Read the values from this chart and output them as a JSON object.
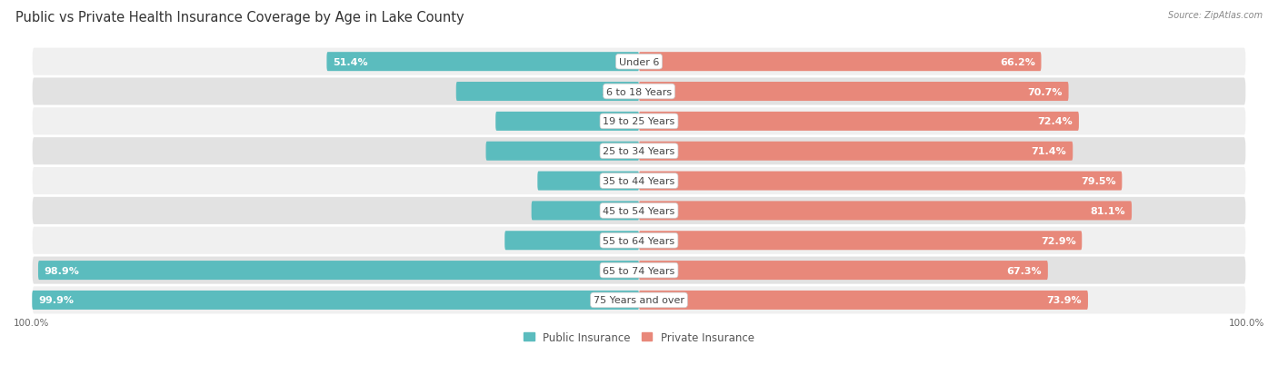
{
  "title": "Public vs Private Health Insurance Coverage by Age in Lake County",
  "source": "Source: ZipAtlas.com",
  "categories": [
    "Under 6",
    "6 to 18 Years",
    "19 to 25 Years",
    "25 to 34 Years",
    "35 to 44 Years",
    "45 to 54 Years",
    "55 to 64 Years",
    "65 to 74 Years",
    "75 Years and over"
  ],
  "public_values": [
    51.4,
    30.1,
    23.6,
    25.2,
    16.7,
    17.7,
    22.1,
    98.9,
    99.9
  ],
  "private_values": [
    66.2,
    70.7,
    72.4,
    71.4,
    79.5,
    81.1,
    72.9,
    67.3,
    73.9
  ],
  "public_color": "#5bbcbe",
  "private_color": "#e8887a",
  "row_bg_light": "#f0f0f0",
  "row_bg_dark": "#e2e2e2",
  "bar_height": 0.62,
  "title_fontsize": 10.5,
  "value_fontsize": 8,
  "category_fontsize": 8,
  "legend_fontsize": 8.5,
  "axis_label_fontsize": 7.5,
  "background_color": "#ffffff",
  "max_value": 100.0,
  "axis_bottom_label": "100.0%",
  "axis_top_label": "100.0%"
}
